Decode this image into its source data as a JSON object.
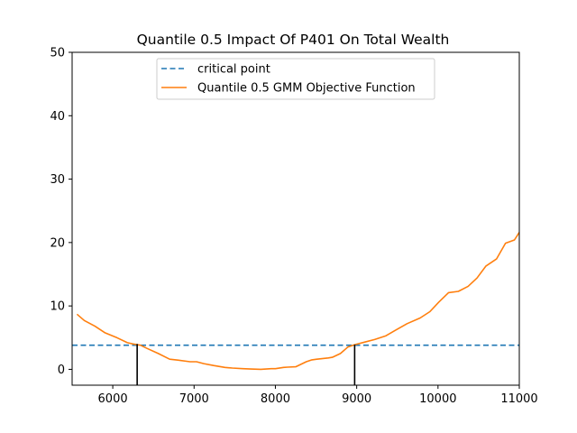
{
  "chart_data": {
    "type": "line",
    "title": "Quantile 0.5 Impact Of P401 On Total Wealth",
    "xlabel": "",
    "ylabel": "",
    "xlim": [
      5500,
      11000
    ],
    "ylim": [
      -2.5,
      50
    ],
    "xticks": [
      6000,
      7000,
      8000,
      9000,
      10000,
      11000
    ],
    "yticks": [
      0,
      10,
      20,
      30,
      40,
      50
    ],
    "grid": false,
    "legend_position": "top-center",
    "critical_point": {
      "name": "critical point",
      "y": 3.8,
      "color": "#1f77b4",
      "style": "dashed"
    },
    "series": [
      {
        "name": "Quantile 0.5 GMM Objective Function",
        "color": "#ff7f0e",
        "x": [
          5560,
          5650,
          5780,
          5900,
          6050,
          6180,
          6250,
          6340,
          6420,
          6560,
          6700,
          6800,
          6950,
          7030,
          7120,
          7240,
          7380,
          7470,
          7600,
          7700,
          7820,
          7950,
          8000,
          8100,
          8150,
          8250,
          8380,
          8450,
          8510,
          8650,
          8700,
          8800,
          8890,
          8980,
          9100,
          9220,
          9360,
          9480,
          9620,
          9780,
          9900,
          10010,
          10130,
          10250,
          10370,
          10480,
          10590,
          10720,
          10830,
          10940,
          11000
        ],
        "y": [
          8.7,
          7.7,
          6.8,
          5.8,
          5.0,
          4.2,
          4.0,
          3.8,
          3.3,
          2.5,
          1.6,
          1.45,
          1.2,
          1.2,
          0.9,
          0.6,
          0.3,
          0.2,
          0.1,
          0.05,
          0.0,
          0.1,
          0.1,
          0.3,
          0.35,
          0.4,
          1.2,
          1.5,
          1.6,
          1.8,
          1.9,
          2.5,
          3.5,
          3.9,
          4.3,
          4.7,
          5.3,
          6.2,
          7.2,
          8.1,
          9.1,
          10.6,
          12.1,
          12.3,
          13.1,
          14.4,
          16.3,
          17.4,
          19.9,
          20.4,
          21.6
        ]
      }
    ],
    "vertical_markers": [
      {
        "x": 6300,
        "y": 4.0
      },
      {
        "x": 8975,
        "y": 3.9
      }
    ]
  }
}
